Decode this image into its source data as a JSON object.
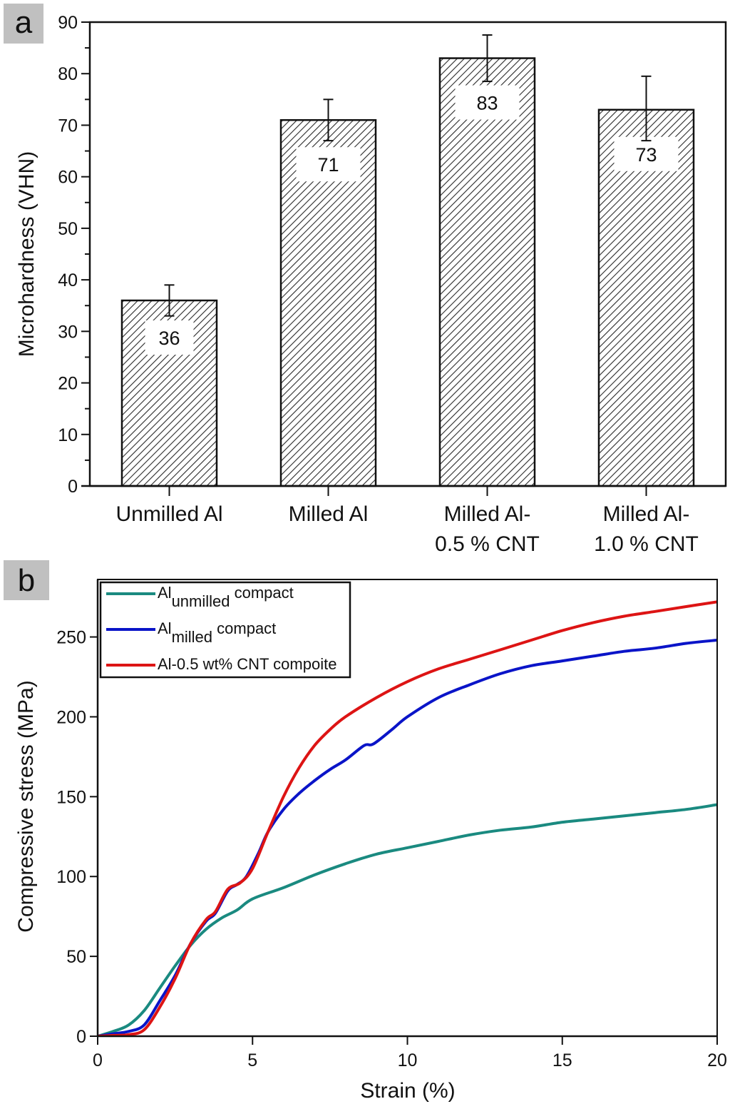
{
  "chart_data": [
    {
      "panel": "a",
      "type": "bar",
      "title": "",
      "xlabel": "",
      "ylabel": "Microhardness (VHN)",
      "ylim": [
        0,
        90
      ],
      "yticks": [
        0,
        10,
        20,
        30,
        40,
        50,
        60,
        70,
        80,
        90
      ],
      "ytick_labels": [
        "0",
        "10",
        "20",
        "30",
        "40",
        "50",
        "60",
        "70",
        "80",
        "90"
      ],
      "grid": false,
      "fill_pattern": "diagonal-hatch",
      "categories": [
        [
          "Unmilled Al"
        ],
        [
          "Milled Al"
        ],
        [
          "Milled Al-",
          "0.5 % CNT"
        ],
        [
          "Milled Al-",
          "1.0 % CNT"
        ]
      ],
      "values": [
        36,
        71,
        83,
        73
      ],
      "value_labels": [
        "36",
        "71",
        "83",
        "73"
      ],
      "error_bars": [
        {
          "low": 33,
          "high": 39
        },
        {
          "low": 67,
          "high": 75
        },
        {
          "low": 78.5,
          "high": 87.5
        },
        {
          "low": 67,
          "high": 79.5
        }
      ]
    },
    {
      "panel": "b",
      "type": "line",
      "title": "",
      "xlabel": "Strain (%)",
      "ylabel": "Compressive stress (MPa)",
      "xlim": [
        0,
        20
      ],
      "ylim": [
        0,
        286
      ],
      "xticks": [
        0,
        5,
        10,
        15,
        20
      ],
      "xtick_labels": [
        "0",
        "5",
        "10",
        "15",
        "20"
      ],
      "yticks": [
        0,
        50,
        100,
        150,
        200,
        250
      ],
      "ytick_labels": [
        "0",
        "50",
        "100",
        "150",
        "200",
        "250"
      ],
      "grid": false,
      "legend_position": "top-left",
      "series": [
        {
          "name": "Al unmilled compact",
          "legend_main": "Al",
          "legend_sub": "unmilled",
          "legend_rest": " compact",
          "color": "#1a8a80",
          "x": [
            0,
            0.5,
            1,
            1.5,
            2,
            2.5,
            3,
            3.5,
            4,
            4.5,
            5,
            6,
            7,
            8,
            9,
            10,
            11,
            12,
            13,
            14,
            15,
            16,
            17,
            18,
            19,
            20
          ],
          "y": [
            0,
            3,
            7,
            16,
            30,
            44,
            57,
            67,
            74,
            79,
            86,
            93,
            101,
            108,
            114,
            118,
            122,
            126,
            129,
            131,
            134,
            136,
            138,
            140,
            142,
            145
          ]
        },
        {
          "name": "Al milled compact",
          "legend_main": "Al",
          "legend_sub": "milled",
          "legend_rest": " compact",
          "color": "#0a14c8",
          "x": [
            0,
            0.5,
            1,
            1.5,
            2,
            2.5,
            3,
            3.5,
            3.8,
            4.2,
            4.5,
            4.8,
            5.2,
            5.5,
            6,
            6.5,
            7,
            7.5,
            8,
            8.6,
            8.9,
            9.5,
            10,
            11,
            12,
            13,
            14,
            15,
            16,
            17,
            18,
            19,
            20
          ],
          "y": [
            0,
            1.5,
            3,
            7,
            22,
            38,
            58,
            72,
            77,
            91,
            95,
            100,
            115,
            128,
            142,
            152,
            160,
            167,
            173,
            182,
            183,
            192,
            200,
            212,
            220,
            227,
            232,
            235,
            238,
            241,
            243,
            246,
            248
          ]
        },
        {
          "name": "Al-0.5 wt% CNT compoite",
          "legend_main": "Al-0.5 wt% CNT compoite",
          "legend_sub": "",
          "legend_rest": "",
          "color": "#dd1414",
          "x": [
            0,
            0.5,
            1,
            1.5,
            2,
            2.5,
            3,
            3.5,
            3.8,
            4.2,
            4.6,
            5,
            5.5,
            6,
            6.5,
            7,
            7.5,
            8,
            9,
            10,
            11,
            12,
            13,
            14,
            15,
            16,
            17,
            18,
            19,
            20
          ],
          "y": [
            0,
            0.5,
            1,
            4,
            18,
            36,
            58,
            73,
            78,
            92,
            96,
            105,
            128,
            150,
            168,
            182,
            192,
            200,
            212,
            222,
            230,
            236,
            242,
            248,
            254,
            259,
            263,
            266,
            269,
            272
          ]
        }
      ]
    }
  ],
  "panel_labels": [
    "a",
    "b"
  ]
}
